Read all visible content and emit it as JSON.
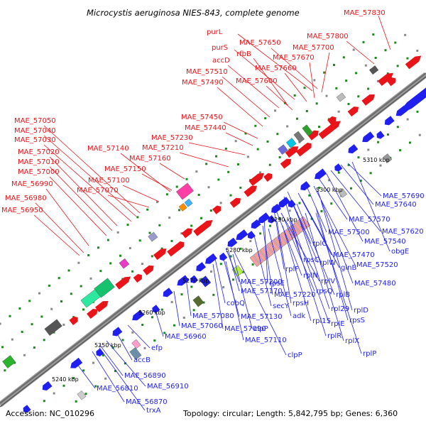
{
  "title": "Microcystis aeruginosa NIES-843, complete genome",
  "footer": {
    "accession": "Accession: NC_010296",
    "summary": "Topology: circular; Length: 5,842,795 bp; Genes: 6,360"
  },
  "colors": {
    "forward_strand": "#e8141a",
    "reverse_strand": "#1f1ff0",
    "backbone": "#7a7a7a",
    "tick_dot": "#1b8a1b"
  },
  "tick_labels": [
    "5240 kbp",
    "5250 kbp",
    "5260 kbp",
    "5270 kbp",
    "5280 kbp",
    "5290 kbp",
    "5300 kbp",
    "5310 kbp"
  ],
  "forward_genes": [
    "MAE_57830",
    "MAE_57800",
    "purL",
    "MAE_57650",
    "MAE_57700",
    "purS",
    "rfbB",
    "MAE_57670",
    "accD",
    "MAE_57660",
    "MAE_57510",
    "MAE_57600",
    "MAE_57490",
    "MAE_57450",
    "MAE_57440",
    "MAE_57230",
    "MAE_57210",
    "MAE_57050",
    "MAE_57040",
    "MAE_57030",
    "MAE_57140",
    "MAE_57160",
    "MAE_57020",
    "MAE_57150",
    "MAE_57010",
    "MAE_57000",
    "MAE_57100",
    "MAE_56990",
    "MAE_57070",
    "MAE_56980",
    "MAE_56950"
  ],
  "reverse_genes": [
    "MAE_57690",
    "MAE_57640",
    "MAE_57570",
    "MAE_57620",
    "MAE_57500",
    "MAE_57540",
    "rplC",
    "obgE",
    "MAE_57470",
    "rpsC",
    "glnB",
    "MAE_57520",
    "rplW",
    "rplF",
    "rplN",
    "MAE_57480",
    "rplV",
    "MAE_57200",
    "rpsE",
    "rplB",
    "rpsQ",
    "MAE_57170",
    "MAE_57220",
    "rpsH",
    "rplD",
    "cobQ",
    "secY",
    "rpl29",
    "MAE_57080",
    "MAE_57130",
    "adk",
    "rplE",
    "rpsS",
    "MAE_57060",
    "MAE_57090",
    "rpl15",
    "clpP",
    "rplR",
    "MAE_56960",
    "MAE_57110",
    "rplX",
    "efp",
    "clpP",
    "rplP",
    "accB",
    "MAE_56890",
    "MAE_56910",
    "MAE_56810",
    "MAE_56870",
    "trxA"
  ]
}
